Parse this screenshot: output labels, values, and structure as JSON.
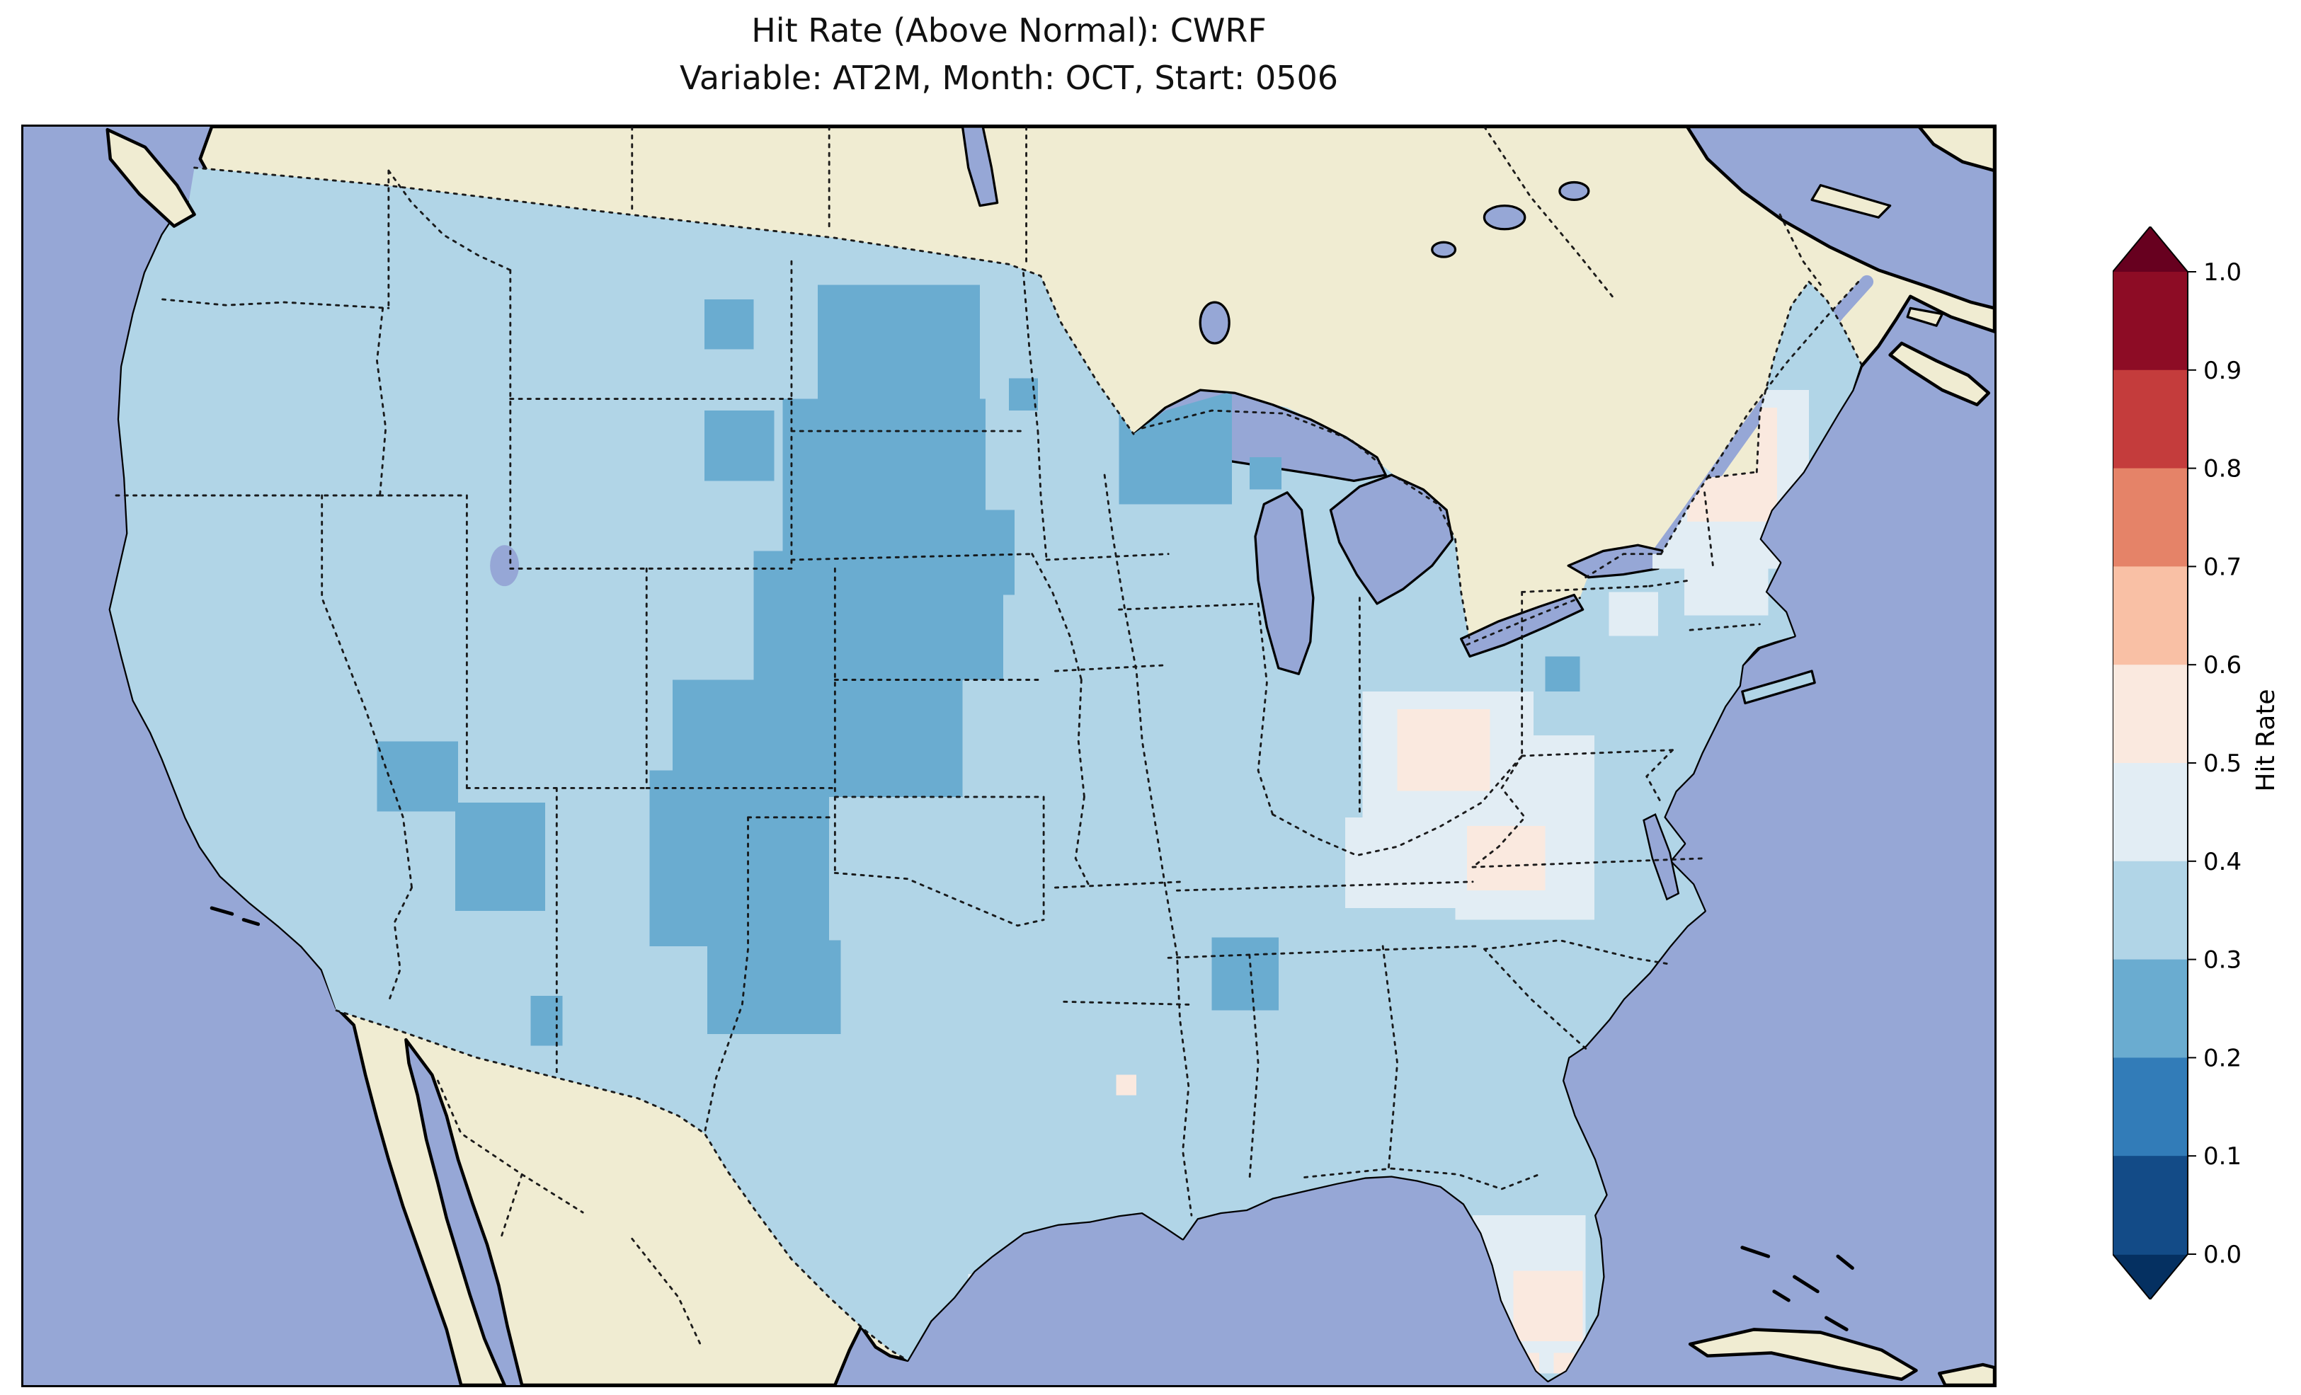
{
  "title": {
    "line1": "Hit Rate (Above Normal): CWRF",
    "line2": "Variable: AT2M, Month: OCT, Start: 0506"
  },
  "colorbar": {
    "label": "Hit Rate",
    "ticks": [
      "1.0",
      "0.9",
      "0.8",
      "0.7",
      "0.6",
      "0.5",
      "0.4",
      "0.3",
      "0.2",
      "0.1",
      "0.0"
    ],
    "bins": [
      {
        "range": "0.9-1.0",
        "color": "#8d0c25"
      },
      {
        "range": "0.8-0.9",
        "color": "#c43c3c"
      },
      {
        "range": "0.7-0.8",
        "color": "#e58368"
      },
      {
        "range": "0.6-0.7",
        "color": "#f9c0a5"
      },
      {
        "range": "0.5-0.6",
        "color": "#fae9df"
      },
      {
        "range": "0.4-0.5",
        "color": "#e2edf4"
      },
      {
        "range": "0.3-0.4",
        "color": "#b1d5e7"
      },
      {
        "range": "0.2-0.3",
        "color": "#6aacd0"
      },
      {
        "range": "0.1-0.2",
        "color": "#327cb8"
      },
      {
        "range": "0.0-0.1",
        "color": "#134b87"
      }
    ],
    "over_color": "#67001f",
    "under_color": "#053061"
  },
  "map": {
    "ocean_color": "#96a7d6",
    "land_color": "#f0ecd2",
    "lake_color": "#96a7d6",
    "coast_color": "#000000",
    "border_style": "dotted black state and national boundaries"
  },
  "chart_data": {
    "type": "heatmap",
    "title": "Hit Rate (Above Normal): CWRF",
    "subtitle": "Variable: AT2M, Month: OCT, Start: 0506",
    "model": "CWRF",
    "variable": "AT2M",
    "month": "OCT",
    "start": "0506",
    "value_label": "Hit Rate",
    "value_range": [
      0.0,
      1.0
    ],
    "bin_width": 0.1,
    "colormap": "RdBu reversed, discrete 10 bins, extended arrows both ends",
    "region": "Continental United States",
    "summary_regions": [
      {
        "area": "Most of CONUS (base fill)",
        "hit_rate": "0.3-0.4"
      },
      {
        "area": "Northern Plains: Dakotas, Nebraska, Kansas, eastern Colorado",
        "hit_rate": "0.2-0.3"
      },
      {
        "area": "NE Minnesota / western Lake Superior",
        "hit_rate": "0.2-0.3"
      },
      {
        "area": "Arizona and western New Mexico patches",
        "hit_rate": "0.2-0.3"
      },
      {
        "area": "Texas panhandle / eastern New Mexico",
        "hit_rate": "0.2-0.3"
      },
      {
        "area": "Central Mississippi patch",
        "hit_rate": "0.2-0.3"
      },
      {
        "area": "Ohio Valley: Ohio, Indiana, Kentucky, West Virginia",
        "hit_rate": "0.4-0.6"
      },
      {
        "area": "Northern New England",
        "hit_rate": "0.4-0.6"
      },
      {
        "area": "Florida peninsula",
        "hit_rate": "0.4-0.6"
      }
    ],
    "base_bin": "0.3-0.4",
    "patches": [
      {
        "value_bin": "0.3-0.4",
        "note": "base fill over entire CONUS",
        "cells": []
      },
      {
        "value_bin": "0.2-0.3",
        "cells": [
          [
            548,
            108,
            112,
            78
          ],
          [
            470,
            194,
            48,
            48
          ],
          [
            524,
            186,
            140,
            104
          ],
          [
            560,
            262,
            124,
            58
          ],
          [
            504,
            290,
            172,
            88
          ],
          [
            448,
            378,
            200,
            80
          ],
          [
            432,
            440,
            124,
            120
          ],
          [
            472,
            546,
            84,
            74
          ],
          [
            508,
            556,
            56,
            64
          ],
          [
            470,
            118,
            34,
            34
          ],
          [
            756,
            182,
            78,
            76
          ],
          [
            680,
            172,
            20,
            22
          ],
          [
            846,
            226,
            22,
            22
          ],
          [
            244,
            420,
            56,
            48
          ],
          [
            298,
            462,
            62,
            74
          ],
          [
            350,
            594,
            22,
            34
          ],
          [
            820,
            554,
            46,
            50
          ],
          [
            1050,
            362,
            24,
            24
          ]
        ]
      },
      {
        "value_bin": "0.4-0.5",
        "cells": [
          [
            924,
            386,
            118,
            104
          ],
          [
            912,
            472,
            84,
            62
          ],
          [
            988,
            468,
            96,
            74
          ],
          [
            1040,
            416,
            44,
            64
          ],
          [
            1124,
            180,
            108,
            122
          ],
          [
            1146,
            294,
            58,
            40
          ],
          [
            1000,
            744,
            78,
            108
          ],
          [
            652,
            784,
            20,
            20
          ],
          [
            1094,
            318,
            34,
            30
          ]
        ]
      },
      {
        "value_bin": "0.5-0.6",
        "cells": [
          [
            948,
            398,
            64,
            56
          ],
          [
            996,
            478,
            54,
            44
          ],
          [
            1148,
            192,
            62,
            78
          ],
          [
            1028,
            782,
            48,
            48
          ],
          [
            1032,
            838,
            14,
            14
          ],
          [
            1056,
            838,
            14,
            14
          ],
          [
            754,
            648,
            14,
            14
          ]
        ]
      }
    ]
  }
}
